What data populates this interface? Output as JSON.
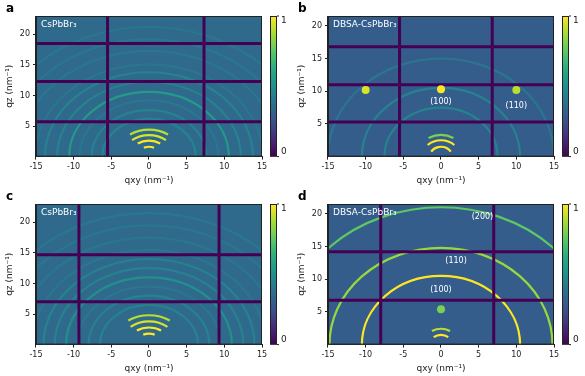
{
  "chart_data": [
    {
      "type": "heatmap",
      "panel": "a",
      "sample_label": "CsPbBr₃",
      "x_label": "qxy (nm⁻¹)",
      "y_label": "qz (nm⁻¹)",
      "xlim": [
        -15,
        15
      ],
      "xticks": [
        -15,
        -10,
        -5,
        0,
        5,
        10,
        15
      ],
      "ylim": [
        0,
        23
      ],
      "yticks": [
        5,
        10,
        15,
        20
      ],
      "grid": false,
      "background": 0.35,
      "colorbar": {
        "range": [
          0,
          1
        ],
        "ticks": [
          0,
          1
        ]
      },
      "detector_gaps": {
        "qz": [
          5.7,
          12.3,
          18.5
        ],
        "qxy": [
          -5.5,
          7.3
        ]
      },
      "rings": [
        {
          "q": 1.6,
          "chi": 25,
          "intensity": 1
        },
        {
          "q": 2.6,
          "chi": 35,
          "intensity": 1
        },
        {
          "q": 3.5,
          "chi": 40,
          "intensity": 0.95
        },
        {
          "q": 4.4,
          "chi": 35,
          "intensity": 0.9
        },
        {
          "q": 6.2,
          "chi": 90,
          "intensity": 0.45
        },
        {
          "q": 7.6,
          "chi": 90,
          "intensity": 0.45
        },
        {
          "q": 9.2,
          "chi": 90,
          "intensity": 0.4
        },
        {
          "q": 10.6,
          "chi": 90,
          "intensity": 0.55
        },
        {
          "q": 12.2,
          "chi": 90,
          "intensity": 0.45
        },
        {
          "q": 13.8,
          "chi": 90,
          "intensity": 0.45
        },
        {
          "q": 15.1,
          "chi": 90,
          "intensity": 0.4
        },
        {
          "q": 17.3,
          "chi": 90,
          "intensity": 0.4
        },
        {
          "q": 19.2,
          "chi": 90,
          "intensity": 0.4
        },
        {
          "q": 21.2,
          "chi": 90,
          "intensity": 0.4
        }
      ],
      "spots": [],
      "annotations": []
    },
    {
      "type": "heatmap",
      "panel": "b",
      "sample_label": "DBSA-CsPbBr₃",
      "x_label": "qxy (nm⁻¹)",
      "y_label": "qz (nm⁻¹)",
      "xlim": [
        -15,
        15
      ],
      "xticks": [
        -15,
        -10,
        -5,
        0,
        5,
        10,
        15
      ],
      "ylim": [
        0,
        21.5
      ],
      "yticks": [
        5,
        10,
        15,
        20
      ],
      "grid": false,
      "background": 0.3,
      "colorbar": {
        "range": [
          0,
          1
        ],
        "ticks": [
          0,
          1
        ]
      },
      "detector_gaps": {
        "qz": [
          5.3,
          11,
          16.8
        ],
        "qxy": [
          -5.5,
          6.8
        ]
      },
      "rings": [
        {
          "q": 1.5,
          "chi": 60,
          "intensity": 1
        },
        {
          "q": 2.5,
          "chi": 45,
          "intensity": 1
        },
        {
          "q": 3.3,
          "chi": 30,
          "intensity": 0.8
        },
        {
          "q": 7.5,
          "chi": 90,
          "intensity": 0.45
        },
        {
          "q": 10.5,
          "chi": 90,
          "intensity": 0.45
        },
        {
          "q": 15,
          "chi": 90,
          "intensity": 0.4
        }
      ],
      "spots": [
        {
          "qxy": 0,
          "qz": 10.3,
          "intensity": 1
        },
        {
          "qxy": -10,
          "qz": 10.2,
          "intensity": 0.95
        },
        {
          "qxy": 10,
          "qz": 10.2,
          "intensity": 0.9
        }
      ],
      "annotations": [
        {
          "text": "(100)",
          "qxy": 0,
          "qz": 8.3
        },
        {
          "text": "(110)",
          "qxy": 10,
          "qz": 7.8
        }
      ]
    },
    {
      "type": "heatmap",
      "panel": "c",
      "sample_label": "CsPbBr₃",
      "x_label": "qxy (nm⁻¹)",
      "y_label": "qz (nm⁻¹)",
      "xlim": [
        -15,
        15
      ],
      "xticks": [
        -15,
        -10,
        -5,
        0,
        5,
        10,
        15
      ],
      "ylim": [
        0,
        23
      ],
      "yticks": [
        5,
        10,
        15,
        20
      ],
      "grid": false,
      "background": 0.35,
      "colorbar": {
        "range": [
          0,
          1
        ],
        "ticks": [
          0,
          1
        ]
      },
      "detector_gaps": {
        "qz": [
          7,
          14.7
        ],
        "qxy": [
          -9.3,
          9.3
        ]
      },
      "rings": [
        {
          "q": 1.8,
          "chi": 25,
          "intensity": 1
        },
        {
          "q": 2.8,
          "chi": 35,
          "intensity": 1
        },
        {
          "q": 3.8,
          "chi": 40,
          "intensity": 0.95
        },
        {
          "q": 4.8,
          "chi": 35,
          "intensity": 0.9
        },
        {
          "q": 6.5,
          "chi": 90,
          "intensity": 0.45
        },
        {
          "q": 8,
          "chi": 90,
          "intensity": 0.45
        },
        {
          "q": 9.5,
          "chi": 90,
          "intensity": 0.4
        },
        {
          "q": 11,
          "chi": 90,
          "intensity": 0.5
        },
        {
          "q": 12.5,
          "chi": 90,
          "intensity": 0.45
        },
        {
          "q": 14,
          "chi": 90,
          "intensity": 0.45
        },
        {
          "q": 15.5,
          "chi": 90,
          "intensity": 0.4
        },
        {
          "q": 17.5,
          "chi": 90,
          "intensity": 0.4
        },
        {
          "q": 19.5,
          "chi": 90,
          "intensity": 0.4
        },
        {
          "q": 21.5,
          "chi": 90,
          "intensity": 0.4
        }
      ],
      "spots": [],
      "annotations": []
    },
    {
      "type": "heatmap",
      "panel": "d",
      "sample_label": "DBSA-CsPbBr₃",
      "x_label": "qxy (nm⁻¹)",
      "y_label": "qz (nm⁻¹)",
      "xlim": [
        -15,
        15
      ],
      "xticks": [
        -15,
        -10,
        -5,
        0,
        5,
        10,
        15
      ],
      "ylim": [
        0,
        21.5
      ],
      "yticks": [
        5,
        10,
        15,
        20
      ],
      "grid": false,
      "background": 0.3,
      "colorbar": {
        "range": [
          0,
          1
        ],
        "ticks": [
          0,
          1
        ]
      },
      "detector_gaps": {
        "qz": [
          6.8,
          14.2
        ],
        "qxy": [
          -8,
          7
        ]
      },
      "rings": [
        {
          "q": 1.5,
          "chi": 40,
          "intensity": 1
        },
        {
          "q": 2.4,
          "chi": 30,
          "intensity": 0.9
        },
        {
          "q": 10.5,
          "chi": 90,
          "intensity": 1
        },
        {
          "q": 14.8,
          "chi": 90,
          "intensity": 0.85
        },
        {
          "q": 21,
          "chi": 90,
          "intensity": 0.75
        }
      ],
      "spots": [
        {
          "qxy": 0,
          "qz": 5.4,
          "intensity": 0.8
        }
      ],
      "annotations": [
        {
          "text": "(100)",
          "qxy": 0,
          "qz": 8.3
        },
        {
          "text": "(110)",
          "qxy": 2,
          "qz": 12.8
        },
        {
          "text": "(200)",
          "qxy": 5.5,
          "qz": 19.5
        }
      ]
    }
  ]
}
